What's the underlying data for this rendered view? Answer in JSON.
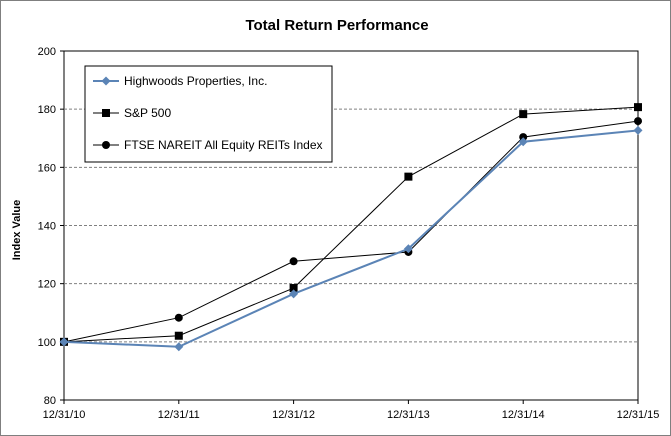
{
  "chart_data": {
    "type": "line",
    "title": "Total Return Performance",
    "xlabel": "",
    "ylabel": "Index Value",
    "categories": [
      "12/31/10",
      "12/31/11",
      "12/31/12",
      "12/31/13",
      "12/31/14",
      "12/31/15"
    ],
    "ylim": [
      80,
      200
    ],
    "yticks": [
      80,
      100,
      120,
      140,
      160,
      180,
      200
    ],
    "grid": true,
    "legend_position": "top-left",
    "series": [
      {
        "name": "Highwoods Properties, Inc.",
        "marker": "diamond",
        "color": "#5b84b6",
        "values": [
          100,
          98.3,
          116.5,
          132,
          168.8,
          172.7
        ]
      },
      {
        "name": "S&P 500",
        "marker": "square",
        "color": "#000000",
        "values": [
          100,
          102.1,
          118.5,
          156.8,
          178.3,
          180.7
        ]
      },
      {
        "name": "FTSE NAREIT All Equity REITs Index",
        "marker": "circle",
        "color": "#000000",
        "values": [
          100,
          108.3,
          127.7,
          130.9,
          170.4,
          175.9
        ]
      }
    ]
  }
}
